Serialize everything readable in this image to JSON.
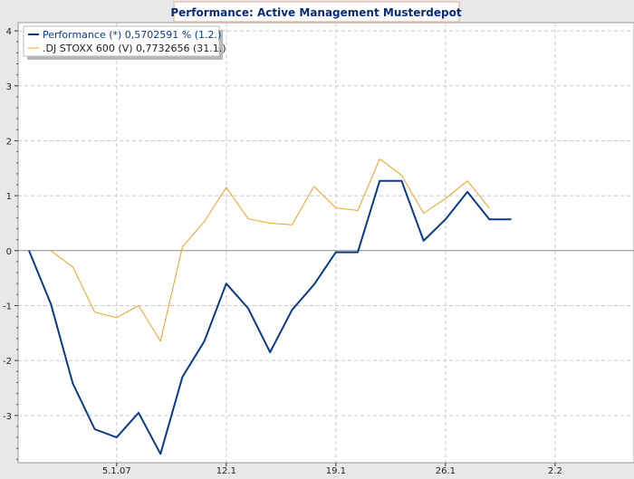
{
  "chart_data": {
    "type": "line",
    "title": "Performance: Active Management Musterdepot",
    "xlabel": "",
    "ylabel": "",
    "ylim": [
      -3.86,
      4.15
    ],
    "y_ticks": [
      -3,
      -2,
      -1,
      0,
      1,
      2,
      3,
      4
    ],
    "x_ticks": [
      {
        "label": "5.1.07",
        "x": 4
      },
      {
        "label": "12.1",
        "x": 9
      },
      {
        "label": "19.1",
        "x": 14
      },
      {
        "label": "26.1",
        "x": 19
      },
      {
        "label": "2.2",
        "x": 24
      }
    ],
    "xlim": [
      0,
      27.6
    ],
    "grid": true,
    "legend_position": "top-left",
    "series": [
      {
        "name": "Performance (*) 0,5702591 % (1.2.)",
        "color": "#0a3a8a",
        "width": 2,
        "x": [
          0,
          1,
          2,
          3,
          4,
          5,
          6,
          7,
          8,
          9,
          10,
          11,
          12,
          13,
          14,
          15,
          16,
          17,
          18,
          19,
          20,
          21,
          22,
          23
        ],
        "y": [
          0,
          -0.97,
          -2.42,
          -3.25,
          -3.4,
          -2.95,
          -3.7,
          -2.3,
          -1.65,
          -0.6,
          -1.05,
          -1.85,
          -1.08,
          -0.62,
          -0.03,
          -0.03,
          1.27,
          1.27,
          0.18,
          0.57,
          1.07,
          0.57,
          0.57,
          null
        ]
      },
      {
        "name": ".DJ STOXX 600 (V) 0,7732656 (31.1.)",
        "color": "#f0a020",
        "width": 1,
        "x": [
          1,
          2,
          3,
          4,
          5,
          6,
          7,
          8,
          9,
          10,
          11,
          12,
          13,
          14,
          15,
          16,
          17,
          18,
          19,
          20,
          21,
          22
        ],
        "y": [
          0,
          -0.3,
          -1.12,
          -1.22,
          -1.0,
          -1.65,
          0.07,
          0.53,
          1.15,
          0.58,
          0.5,
          0.47,
          1.17,
          0.78,
          0.73,
          1.67,
          1.37,
          0.68,
          0.95,
          1.27,
          0.77,
          null
        ]
      }
    ]
  }
}
